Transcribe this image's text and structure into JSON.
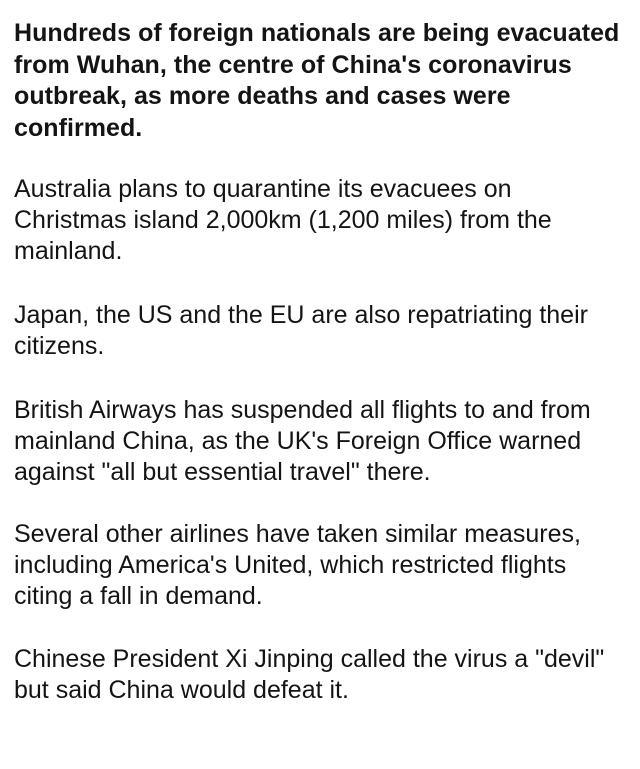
{
  "article": {
    "lede": "Hundreds of foreign nationals are being evacuated from Wuhan, the centre of China's coronavirus outbreak, as more deaths and cases were confirmed.",
    "paragraphs": [
      "Australia plans to quarantine its evacuees on Christmas island 2,000km (1,200 miles) from the mainland.",
      "Japan, the US and the EU are also repatriating their citizens.",
      "British Airways has suspended all flights to and from mainland China, as the UK's Foreign Office warned against \"all but essential travel\" there.",
      "Several other airlines have taken similar measures, including America's United, which restricted flights citing a fall in demand.",
      "Chinese President Xi Jinping called the virus a \"devil\" but said China would defeat it."
    ]
  }
}
